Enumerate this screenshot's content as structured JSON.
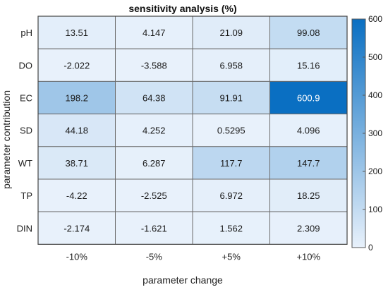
{
  "chart_data": {
    "type": "heatmap",
    "title": "sensitivity analysis (%)",
    "xlabel": "parameter change",
    "ylabel": "parameter contribution",
    "columns": [
      "-10%",
      "-5%",
      "+5%",
      "+10%"
    ],
    "rows": [
      "pH",
      "DO",
      "EC",
      "SD",
      "WT",
      "TP",
      "DIN"
    ],
    "values": [
      [
        13.51,
        4.147,
        21.09,
        99.08
      ],
      [
        -2.022,
        -3.588,
        6.958,
        15.16
      ],
      [
        198.2,
        64.38,
        91.91,
        600.9
      ],
      [
        44.18,
        4.252,
        0.5295,
        4.096
      ],
      [
        38.71,
        6.287,
        117.7,
        147.7
      ],
      [
        -4.22,
        -2.525,
        6.972,
        18.25
      ],
      [
        -2.174,
        -1.621,
        1.562,
        2.309
      ]
    ],
    "cell_labels": [
      [
        "13.51",
        "4.147",
        "21.09",
        "99.08"
      ],
      [
        "-2.022",
        "-3.588",
        "6.958",
        "15.16"
      ],
      [
        "198.2",
        "64.38",
        "91.91",
        "600.9"
      ],
      [
        "44.18",
        "4.252",
        "0.5295",
        "4.096"
      ],
      [
        "38.71",
        "6.287",
        "117.7",
        "147.7"
      ],
      [
        "-4.22",
        "-2.525",
        "6.972",
        "18.25"
      ],
      [
        "-2.174",
        "-1.621",
        "1.562",
        "2.309"
      ]
    ],
    "colorbar": {
      "range": [
        0,
        600
      ],
      "ticks": [
        0,
        100,
        200,
        300,
        400,
        500,
        600
      ],
      "tick_labels": [
        "0",
        "100",
        "200",
        "300",
        "400",
        "500",
        "600"
      ],
      "color_low": "#e8f1fb",
      "color_high": "#0a6fc2"
    }
  }
}
